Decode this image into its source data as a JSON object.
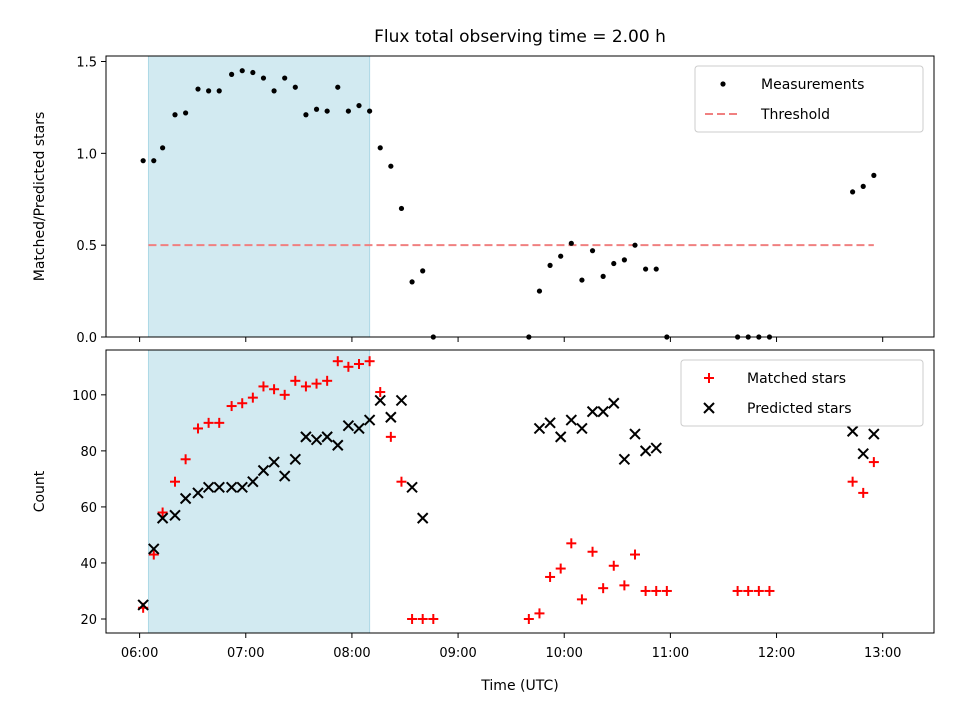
{
  "title": "Flux total observing time = 2.00 h",
  "chart_data": [
    {
      "type": "scatter",
      "ylabel": "Matched/Predicted stars",
      "ylim": [
        0,
        1.53
      ],
      "yticks": [
        0.0,
        0.5,
        1.0,
        1.5
      ],
      "ytick_labels": [
        "0.0",
        "0.5",
        "1.0",
        "1.5"
      ],
      "highlight_span": [
        "06:05",
        "08:10"
      ],
      "threshold": 0.5,
      "threshold_range": [
        "06:05",
        "12:55"
      ],
      "threshold_color": "#f08080",
      "highlight_color": "#add8e6",
      "legend": {
        "position": "top-right",
        "items": [
          "Measurements",
          "Threshold"
        ]
      },
      "series": [
        {
          "name": "Measurements",
          "marker": "dot",
          "color": "#000000",
          "points": [
            [
              "06:02",
              0.96
            ],
            [
              "06:08",
              0.96
            ],
            [
              "06:13",
              1.03
            ],
            [
              "06:20",
              1.21
            ],
            [
              "06:26",
              1.22
            ],
            [
              "06:33",
              1.35
            ],
            [
              "06:39",
              1.34
            ],
            [
              "06:45",
              1.34
            ],
            [
              "06:52",
              1.43
            ],
            [
              "06:58",
              1.45
            ],
            [
              "07:04",
              1.44
            ],
            [
              "07:10",
              1.41
            ],
            [
              "07:16",
              1.34
            ],
            [
              "07:22",
              1.41
            ],
            [
              "07:28",
              1.36
            ],
            [
              "07:34",
              1.21
            ],
            [
              "07:40",
              1.24
            ],
            [
              "07:46",
              1.23
            ],
            [
              "07:52",
              1.36
            ],
            [
              "07:58",
              1.23
            ],
            [
              "08:04",
              1.26
            ],
            [
              "08:10",
              1.23
            ],
            [
              "08:16",
              1.03
            ],
            [
              "08:22",
              0.93
            ],
            [
              "08:28",
              0.7
            ],
            [
              "08:34",
              0.3
            ],
            [
              "08:40",
              0.36
            ],
            [
              "08:46",
              0.0
            ],
            [
              "09:40",
              0.0
            ],
            [
              "09:46",
              0.25
            ],
            [
              "09:52",
              0.39
            ],
            [
              "09:58",
              0.44
            ],
            [
              "10:04",
              0.51
            ],
            [
              "10:10",
              0.31
            ],
            [
              "10:16",
              0.47
            ],
            [
              "10:22",
              0.33
            ],
            [
              "10:28",
              0.4
            ],
            [
              "10:34",
              0.42
            ],
            [
              "10:40",
              0.5
            ],
            [
              "10:46",
              0.37
            ],
            [
              "10:52",
              0.37
            ],
            [
              "10:58",
              0.0
            ],
            [
              "11:38",
              0.0
            ],
            [
              "11:44",
              0.0
            ],
            [
              "11:50",
              0.0
            ],
            [
              "11:56",
              0.0
            ],
            [
              "12:43",
              0.79
            ],
            [
              "12:49",
              0.82
            ],
            [
              "12:55",
              0.88
            ]
          ]
        }
      ]
    },
    {
      "type": "scatter",
      "xlabel": "Time (UTC)",
      "ylabel": "Count",
      "ylim": [
        15,
        116
      ],
      "yticks": [
        20,
        40,
        60,
        80,
        100
      ],
      "ytick_labels": [
        "20",
        "40",
        "60",
        "80",
        "100"
      ],
      "xticks": [
        "06:00",
        "07:00",
        "08:00",
        "09:00",
        "10:00",
        "11:00",
        "12:00",
        "13:00"
      ],
      "xlim": [
        "05:41",
        "13:29"
      ],
      "highlight_span": [
        "06:05",
        "08:10"
      ],
      "highlight_color": "#add8e6",
      "legend": {
        "position": "top-right",
        "items": [
          "Matched stars",
          "Predicted stars"
        ]
      },
      "series": [
        {
          "name": "Matched stars",
          "marker": "plus",
          "color": "#ff0000",
          "points": [
            [
              "06:02",
              24
            ],
            [
              "06:08",
              43
            ],
            [
              "06:13",
              58
            ],
            [
              "06:20",
              69
            ],
            [
              "06:26",
              77
            ],
            [
              "06:33",
              88
            ],
            [
              "06:39",
              90
            ],
            [
              "06:45",
              90
            ],
            [
              "06:52",
              96
            ],
            [
              "06:58",
              97
            ],
            [
              "07:04",
              99
            ],
            [
              "07:10",
              103
            ],
            [
              "07:16",
              102
            ],
            [
              "07:22",
              100
            ],
            [
              "07:28",
              105
            ],
            [
              "07:34",
              103
            ],
            [
              "07:40",
              104
            ],
            [
              "07:46",
              105
            ],
            [
              "07:52",
              112
            ],
            [
              "07:58",
              110
            ],
            [
              "08:04",
              111
            ],
            [
              "08:10",
              112
            ],
            [
              "08:16",
              101
            ],
            [
              "08:22",
              85
            ],
            [
              "08:28",
              69
            ],
            [
              "08:34",
              20
            ],
            [
              "08:40",
              20
            ],
            [
              "08:46",
              20
            ],
            [
              "09:40",
              20
            ],
            [
              "09:46",
              22
            ],
            [
              "09:52",
              35
            ],
            [
              "09:58",
              38
            ],
            [
              "10:04",
              47
            ],
            [
              "10:10",
              27
            ],
            [
              "10:16",
              44
            ],
            [
              "10:22",
              31
            ],
            [
              "10:28",
              39
            ],
            [
              "10:34",
              32
            ],
            [
              "10:40",
              43
            ],
            [
              "10:46",
              30
            ],
            [
              "10:52",
              30
            ],
            [
              "10:58",
              30
            ],
            [
              "11:38",
              30
            ],
            [
              "11:44",
              30
            ],
            [
              "11:50",
              30
            ],
            [
              "11:56",
              30
            ],
            [
              "12:43",
              69
            ],
            [
              "12:49",
              65
            ],
            [
              "12:55",
              76
            ]
          ]
        },
        {
          "name": "Predicted stars",
          "marker": "x",
          "color": "#000000",
          "points": [
            [
              "06:02",
              25
            ],
            [
              "06:08",
              45
            ],
            [
              "06:13",
              56
            ],
            [
              "06:20",
              57
            ],
            [
              "06:26",
              63
            ],
            [
              "06:33",
              65
            ],
            [
              "06:39",
              67
            ],
            [
              "06:45",
              67
            ],
            [
              "06:52",
              67
            ],
            [
              "06:58",
              67
            ],
            [
              "07:04",
              69
            ],
            [
              "07:10",
              73
            ],
            [
              "07:16",
              76
            ],
            [
              "07:22",
              71
            ],
            [
              "07:28",
              77
            ],
            [
              "07:34",
              85
            ],
            [
              "07:40",
              84
            ],
            [
              "07:46",
              85
            ],
            [
              "07:52",
              82
            ],
            [
              "07:58",
              89
            ],
            [
              "08:04",
              88
            ],
            [
              "08:10",
              91
            ],
            [
              "08:16",
              98
            ],
            [
              "08:22",
              92
            ],
            [
              "08:28",
              98
            ],
            [
              "08:34",
              67
            ],
            [
              "08:40",
              56
            ],
            [
              "09:46",
              88
            ],
            [
              "09:52",
              90
            ],
            [
              "09:58",
              85
            ],
            [
              "10:04",
              91
            ],
            [
              "10:10",
              88
            ],
            [
              "10:16",
              94
            ],
            [
              "10:22",
              94
            ],
            [
              "10:28",
              97
            ],
            [
              "10:34",
              77
            ],
            [
              "10:40",
              86
            ],
            [
              "10:46",
              80
            ],
            [
              "10:52",
              81
            ],
            [
              "12:43",
              87
            ],
            [
              "12:49",
              79
            ],
            [
              "12:55",
              86
            ]
          ]
        }
      ]
    }
  ]
}
